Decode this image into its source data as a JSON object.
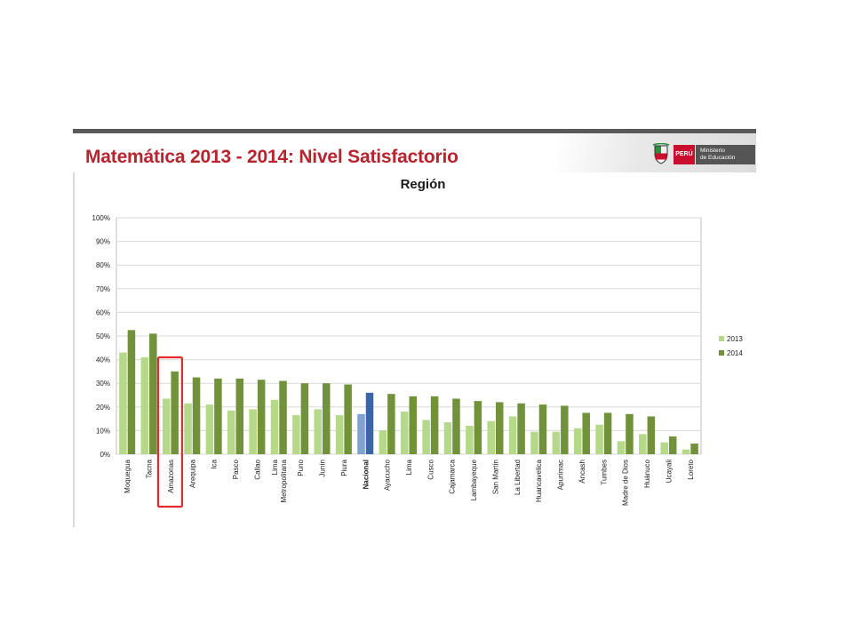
{
  "slide": {
    "title": "Matemática 2013 - 2014: Nivel Satisfactorio",
    "logo": {
      "country": "PERÚ",
      "ministry_line1": "Ministerio",
      "ministry_line2": "de Educación"
    }
  },
  "colors": {
    "title_red": "#b8232d",
    "series_2013": "#b5d889",
    "series_2014": "#71923b",
    "nacional_2013": "#7fa2cf",
    "nacional_2014": "#3a66a8",
    "highlight_box": "#e52a2a"
  },
  "chart_data": {
    "type": "bar",
    "title": "Región",
    "ylim": [
      0,
      100
    ],
    "y_ticks": [
      "0%",
      "10%",
      "20%",
      "30%",
      "40%",
      "50%",
      "60%",
      "70%",
      "80%",
      "90%",
      "100%"
    ],
    "grid": true,
    "legend_position": "right",
    "categories": [
      "Moquegua",
      "Tacna",
      "Amazonas",
      "Arequipa",
      "Ica",
      "Pasco",
      "Callao",
      "Lima Metropolitana",
      "Puno",
      "Junín",
      "Piura",
      "Nacional",
      "Ayacucho",
      "Lima",
      "Cusco",
      "Cajamarca",
      "Lambayeque",
      "San Martín",
      "La Libertad",
      "Huancavelica",
      "Apurímac",
      "Áncash",
      "Tumbes",
      "Madre de Dios",
      "Huánuco",
      "Ucayali",
      "Loreto"
    ],
    "series": [
      {
        "name": "2013",
        "values": [
          43,
          41,
          23.5,
          21.5,
          21,
          18.5,
          19,
          23,
          16.5,
          19,
          16.5,
          17,
          10,
          18,
          14.5,
          13.5,
          12,
          14,
          16,
          9.5,
          9.5,
          11,
          12.5,
          5.5,
          8.5,
          5,
          2
        ]
      },
      {
        "name": "2014",
        "values": [
          52.5,
          51,
          35,
          32.5,
          32,
          32,
          31.5,
          31,
          30,
          30,
          29.5,
          26,
          25.5,
          24.5,
          24.5,
          23.5,
          22.5,
          22,
          21.5,
          21,
          20.5,
          17.5,
          17.5,
          17,
          16,
          7.5,
          4.5
        ]
      }
    ],
    "highlight_category": "Amazonas",
    "bold_category": "Nacional"
  }
}
